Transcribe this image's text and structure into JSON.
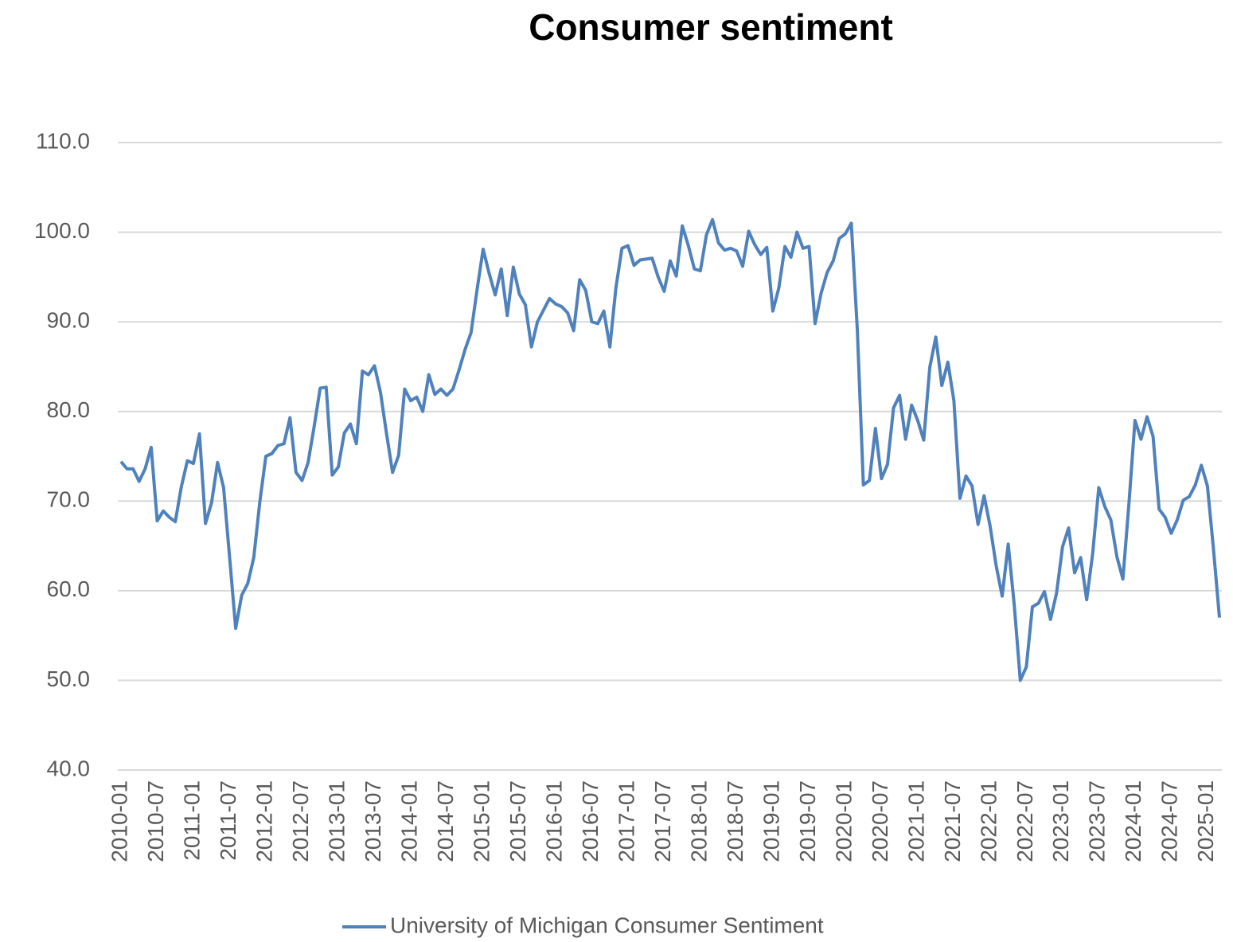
{
  "chart_data": {
    "type": "line",
    "title": "Consumer sentiment",
    "categories": [
      "2010-01",
      null,
      null,
      null,
      null,
      null,
      "2010-07",
      null,
      null,
      null,
      null,
      null,
      "2011-01",
      null,
      null,
      null,
      null,
      null,
      "2011-07",
      null,
      null,
      null,
      null,
      null,
      "2012-01",
      null,
      null,
      null,
      null,
      null,
      "2012-07",
      null,
      null,
      null,
      null,
      null,
      "2013-01",
      null,
      null,
      null,
      null,
      null,
      "2013-07",
      null,
      null,
      null,
      null,
      null,
      "2014-01",
      null,
      null,
      null,
      null,
      null,
      "2014-07",
      null,
      null,
      null,
      null,
      null,
      "2015-01",
      null,
      null,
      null,
      null,
      null,
      "2015-07",
      null,
      null,
      null,
      null,
      null,
      "2016-01",
      null,
      null,
      null,
      null,
      null,
      "2016-07",
      null,
      null,
      null,
      null,
      null,
      "2017-01",
      null,
      null,
      null,
      null,
      null,
      "2017-07",
      null,
      null,
      null,
      null,
      null,
      "2018-01",
      null,
      null,
      null,
      null,
      null,
      "2018-07",
      null,
      null,
      null,
      null,
      null,
      "2019-01",
      null,
      null,
      null,
      null,
      null,
      "2019-07",
      null,
      null,
      null,
      null,
      null,
      "2020-01",
      null,
      null,
      null,
      null,
      null,
      "2020-07",
      null,
      null,
      null,
      null,
      null,
      "2021-01",
      null,
      null,
      null,
      null,
      null,
      "2021-07",
      null,
      null,
      null,
      null,
      null,
      "2022-01",
      null,
      null,
      null,
      null,
      null,
      "2022-07",
      null,
      null,
      null,
      null,
      null,
      "2023-01",
      null,
      null,
      null,
      null,
      null,
      "2023-07",
      null,
      null,
      null,
      null,
      null,
      "2024-01",
      null,
      null,
      null,
      null,
      null,
      "2024-07",
      null,
      null,
      null,
      null,
      null,
      "2025-01",
      null,
      null
    ],
    "series": [
      {
        "name": "University of Michigan Consumer Sentiment",
        "color": "#4f81bd",
        "values": [
          74.4,
          73.6,
          73.6,
          72.2,
          73.6,
          76.0,
          67.8,
          68.9,
          68.2,
          67.7,
          71.6,
          74.5,
          74.2,
          77.5,
          67.5,
          69.8,
          74.3,
          71.5,
          63.7,
          55.8,
          59.5,
          60.8,
          63.7,
          69.9,
          75.0,
          75.3,
          76.2,
          76.4,
          79.3,
          73.2,
          72.3,
          74.3,
          78.3,
          82.6,
          82.7,
          72.9,
          73.8,
          77.6,
          78.6,
          76.4,
          84.5,
          84.1,
          85.1,
          82.1,
          77.5,
          73.2,
          75.1,
          82.5,
          81.2,
          81.6,
          80.0,
          84.1,
          81.9,
          82.5,
          81.8,
          82.5,
          84.6,
          86.9,
          88.8,
          93.6,
          98.1,
          95.4,
          93.0,
          95.9,
          90.7,
          96.1,
          93.1,
          91.9,
          87.2,
          90.0,
          91.3,
          92.6,
          92.0,
          91.7,
          91.0,
          89.0,
          94.7,
          93.5,
          90.0,
          89.8,
          91.2,
          87.2,
          93.8,
          98.2,
          98.5,
          96.3,
          96.9,
          97.0,
          97.1,
          95.0,
          93.4,
          96.8,
          95.1,
          100.7,
          98.5,
          95.9,
          95.7,
          99.7,
          101.4,
          98.8,
          98.0,
          98.2,
          97.9,
          96.2,
          100.1,
          98.6,
          97.5,
          98.3,
          91.2,
          93.8,
          98.4,
          97.2,
          100.0,
          98.2,
          98.4,
          89.8,
          93.2,
          95.5,
          96.8,
          99.3,
          99.8,
          101.0,
          89.1,
          71.8,
          72.3,
          78.1,
          72.5,
          74.1,
          80.4,
          81.8,
          76.9,
          80.7,
          79.0,
          76.8,
          84.9,
          88.3,
          82.9,
          85.5,
          81.2,
          70.3,
          72.8,
          71.7,
          67.4,
          70.6,
          67.2,
          62.8,
          59.4,
          65.2,
          58.4,
          50.0,
          51.5,
          58.2,
          58.6,
          59.9,
          56.8,
          59.7,
          64.9,
          67.0,
          62.0,
          63.7,
          59.0,
          64.2,
          71.5,
          69.4,
          67.9,
          63.8,
          61.3,
          69.7,
          79.0,
          76.9,
          79.4,
          77.2,
          69.1,
          68.2,
          66.4,
          67.9,
          70.1,
          70.5,
          71.8,
          74.0,
          71.7,
          64.7,
          57.0
        ]
      }
    ],
    "ylim": [
      40,
      110
    ],
    "yticks": [
      {
        "value": 40,
        "label": "40.0"
      },
      {
        "value": 50,
        "label": "50.0"
      },
      {
        "value": 60,
        "label": "60.0"
      },
      {
        "value": 70,
        "label": "70.0"
      },
      {
        "value": 80,
        "label": "80.0"
      },
      {
        "value": 90,
        "label": "90.0"
      },
      {
        "value": 100,
        "label": "100.0"
      },
      {
        "value": 110,
        "label": "110.0"
      }
    ],
    "grid": true,
    "legend": "bottom"
  }
}
